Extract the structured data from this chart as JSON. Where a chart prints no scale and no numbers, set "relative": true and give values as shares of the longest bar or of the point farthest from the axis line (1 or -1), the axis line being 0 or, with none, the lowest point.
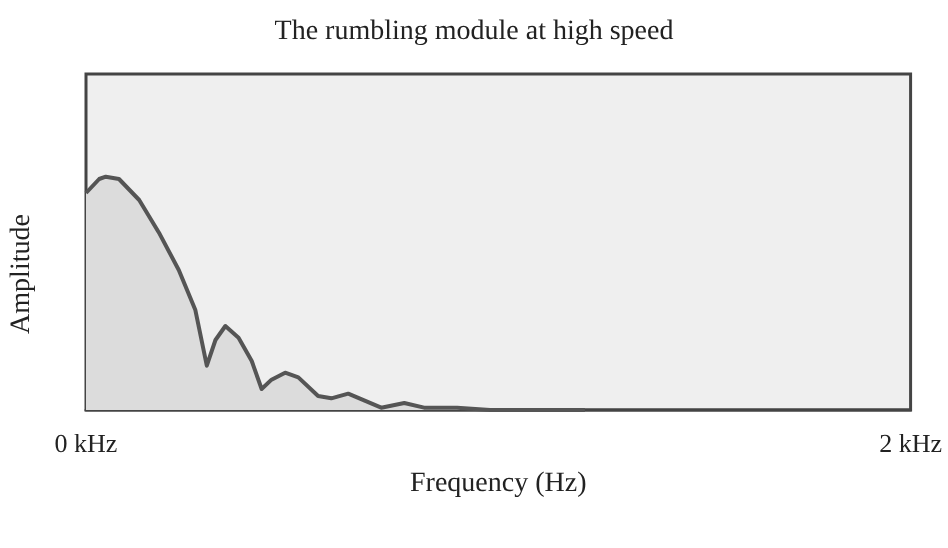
{
  "chart_data": {
    "type": "area",
    "title": "The rumbling module at high speed",
    "xlabel": "Frequency (Hz)",
    "ylabel": "Amplitude",
    "relative": true,
    "x": [
      0,
      0.032,
      0.048,
      0.08,
      0.129,
      0.177,
      0.225,
      0.265,
      0.293,
      0.314,
      0.338,
      0.37,
      0.402,
      0.426,
      0.45,
      0.483,
      0.515,
      0.563,
      0.595,
      0.636,
      0.676,
      0.716,
      0.772,
      0.82,
      0.9,
      0.98,
      1.06,
      1.21
    ],
    "series": [
      {
        "color": "#555555",
        "values": [
          0.93,
          0.99,
          1,
          0.99,
          0.9,
          0.76,
          0.6,
          0.43,
          0.19,
          0.3,
          0.36,
          0.31,
          0.21,
          0.09,
          0.13,
          0.16,
          0.14,
          0.06,
          0.05,
          0.07,
          0.04,
          0.01,
          0.03,
          0.01,
          0.01,
          0,
          0,
          0
        ]
      }
    ],
    "xlim": [
      0,
      2
    ],
    "xticks": [
      {
        "value": 0,
        "label": "0 kHz"
      },
      {
        "value": 2,
        "label": "2 kHz"
      }
    ],
    "grid": false
  }
}
